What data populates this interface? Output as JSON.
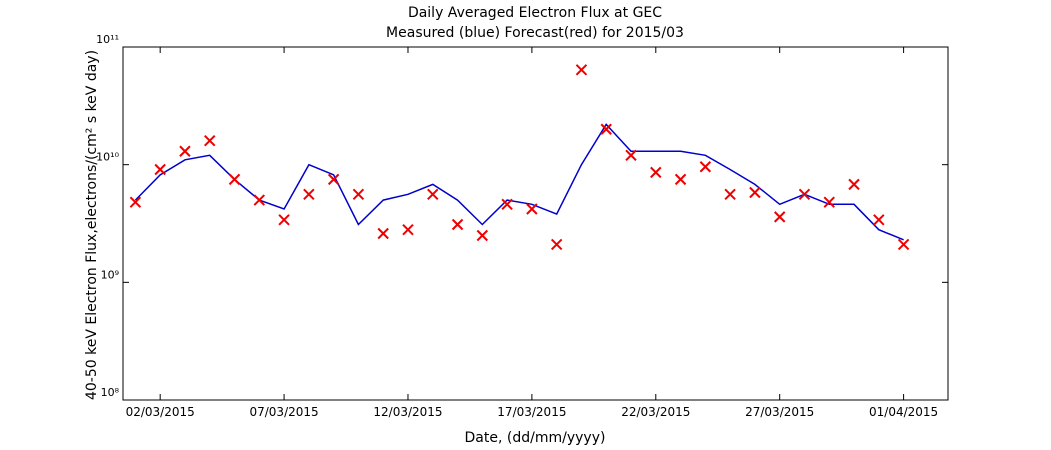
{
  "chart_data": {
    "type": "line",
    "title": "Daily Averaged Electron Flux at GEC",
    "subtitle": "Measured (blue) Forecast(red) for 2015/03",
    "xlabel": "Date, (dd/mm/yyyy)",
    "ylabel": "40-50 keV Electron Flux,electrons/(cm² s keV day)",
    "log_y": true,
    "x": [
      "2015-03-01",
      "2015-03-02",
      "2015-03-03",
      "2015-03-04",
      "2015-03-05",
      "2015-03-06",
      "2015-03-07",
      "2015-03-08",
      "2015-03-09",
      "2015-03-10",
      "2015-03-11",
      "2015-03-12",
      "2015-03-13",
      "2015-03-14",
      "2015-03-15",
      "2015-03-16",
      "2015-03-17",
      "2015-03-18",
      "2015-03-19",
      "2015-03-20",
      "2015-03-21",
      "2015-03-22",
      "2015-03-23",
      "2015-03-24",
      "2015-03-25",
      "2015-03-26",
      "2015-03-27",
      "2015-03-28",
      "2015-03-29",
      "2015-03-30",
      "2015-03-31",
      "2015-04-01"
    ],
    "series": [
      {
        "name": "Measured",
        "color": "#0000cc",
        "style": "line",
        "values": [
          5000000000.0,
          8200000000.0,
          11000000000.0,
          12000000000.0,
          7500000000.0,
          5000000000.0,
          4200000000.0,
          10000000000.0,
          8200000000.0,
          3100000000.0,
          5000000000.0,
          5600000000.0,
          6800000000.0,
          5000000000.0,
          3100000000.0,
          5000000000.0,
          4600000000.0,
          3800000000.0,
          10000000000.0,
          22000000000.0,
          13000000000.0,
          13000000000.0,
          13000000000.0,
          12000000000.0,
          9100000000.0,
          6800000000.0,
          4600000000.0,
          5600000000.0,
          4600000000.0,
          4600000000.0,
          2800000000.0,
          2300000000.0
        ]
      },
      {
        "name": "Forecast",
        "color": "#ee0000",
        "style": "x",
        "values": [
          4800000000.0,
          9100000000.0,
          13000000000.0,
          16000000000.0,
          7500000000.0,
          5000000000.0,
          3400000000.0,
          5600000000.0,
          7500000000.0,
          5600000000.0,
          2600000000.0,
          2800000000.0,
          5600000000.0,
          3100000000.0,
          2500000000.0,
          4600000000.0,
          4200000000.0,
          2100000000.0,
          64000000000.0,
          20000000000.0,
          12000000000.0,
          8600000000.0,
          7500000000.0,
          9600000000.0,
          5600000000.0,
          5800000000.0,
          3600000000.0,
          5600000000.0,
          4800000000.0,
          6800000000.0,
          3400000000.0,
          2100000000.0
        ]
      }
    ],
    "xlim": [
      "2015-02-28T12:00",
      "2015-04-02T19:00"
    ],
    "xticks": [
      {
        "value": "2015-03-02",
        "label": "02/03/2015"
      },
      {
        "value": "2015-03-07",
        "label": "07/03/2015"
      },
      {
        "value": "2015-03-12",
        "label": "12/03/2015"
      },
      {
        "value": "2015-03-17",
        "label": "17/03/2015"
      },
      {
        "value": "2015-03-22",
        "label": "22/03/2015"
      },
      {
        "value": "2015-03-27",
        "label": "27/03/2015"
      },
      {
        "value": "2015-04-01",
        "label": "01/04/2015"
      }
    ],
    "ylim": [
      100000000.0,
      100000000000.0
    ],
    "yticks": [
      {
        "value": 100000000.0,
        "label": "10⁸"
      },
      {
        "value": 1000000000.0,
        "label": "10⁹"
      },
      {
        "value": 10000000000.0,
        "label": "10¹⁰"
      },
      {
        "value": 100000000000.0,
        "label": "10¹¹"
      }
    ]
  }
}
